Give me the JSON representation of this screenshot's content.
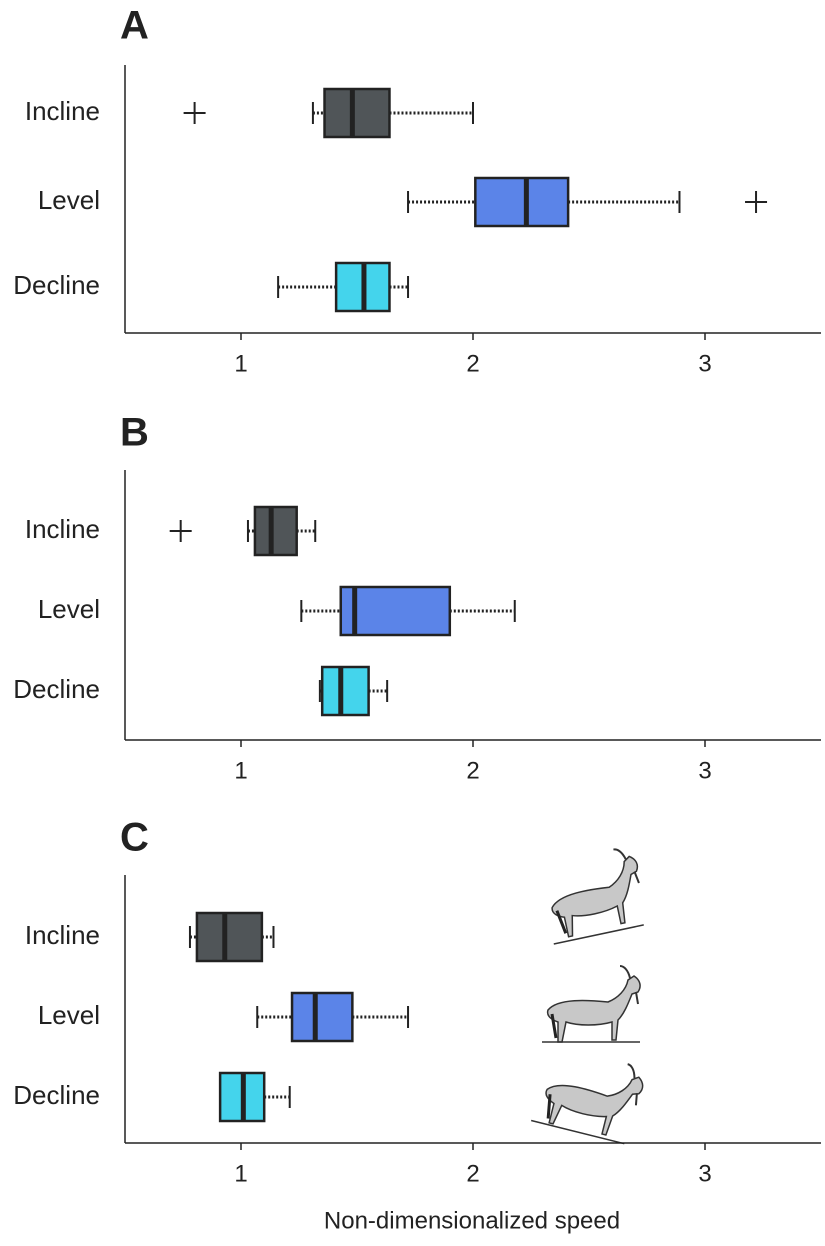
{
  "chart_data": [
    {
      "type": "box",
      "title": "A",
      "categories": [
        "Incline",
        "Level",
        "Decline"
      ],
      "boxes": [
        {
          "low": 1.31,
          "q1": 1.36,
          "median": 1.48,
          "q3": 1.64,
          "high": 2.0,
          "outliers": [
            0.8
          ],
          "color": "#505558"
        },
        {
          "low": 1.72,
          "q1": 2.01,
          "median": 2.23,
          "q3": 2.41,
          "high": 2.89,
          "outliers": [
            3.22
          ],
          "color": "#5b84e8"
        },
        {
          "low": 1.16,
          "q1": 1.41,
          "median": 1.53,
          "q3": 1.64,
          "high": 1.72,
          "outliers": [],
          "color": "#44d4ec"
        }
      ],
      "xlim": [
        0.5,
        3.5
      ],
      "xticks": [
        1,
        2,
        3
      ]
    },
    {
      "type": "box",
      "title": "B",
      "categories": [
        "Incline",
        "Level",
        "Decline"
      ],
      "boxes": [
        {
          "low": 1.03,
          "q1": 1.06,
          "median": 1.13,
          "q3": 1.24,
          "high": 1.32,
          "outliers": [
            0.74
          ],
          "color": "#505558"
        },
        {
          "low": 1.26,
          "q1": 1.43,
          "median": 1.49,
          "q3": 1.9,
          "high": 2.18,
          "outliers": [],
          "color": "#5b84e8"
        },
        {
          "low": 1.34,
          "q1": 1.35,
          "median": 1.43,
          "q3": 1.55,
          "high": 1.63,
          "outliers": [],
          "color": "#44d4ec"
        }
      ],
      "xlim": [
        0.5,
        3.5
      ],
      "xticks": [
        1,
        2,
        3
      ]
    },
    {
      "type": "box",
      "title": "C",
      "categories": [
        "Incline",
        "Level",
        "Decline"
      ],
      "boxes": [
        {
          "low": 0.78,
          "q1": 0.81,
          "median": 0.93,
          "q3": 1.09,
          "high": 1.14,
          "outliers": [],
          "color": "#505558"
        },
        {
          "low": 1.07,
          "q1": 1.22,
          "median": 1.32,
          "q3": 1.48,
          "high": 1.72,
          "outliers": [],
          "color": "#5b84e8"
        },
        {
          "low": 0.91,
          "q1": 0.91,
          "median": 1.01,
          "q3": 1.1,
          "high": 1.21,
          "outliers": [],
          "color": "#44d4ec"
        }
      ],
      "xlim": [
        0.5,
        3.5
      ],
      "xticks": [
        1,
        2,
        3
      ],
      "xlabel": "Non-dimensionalized speed"
    }
  ]
}
